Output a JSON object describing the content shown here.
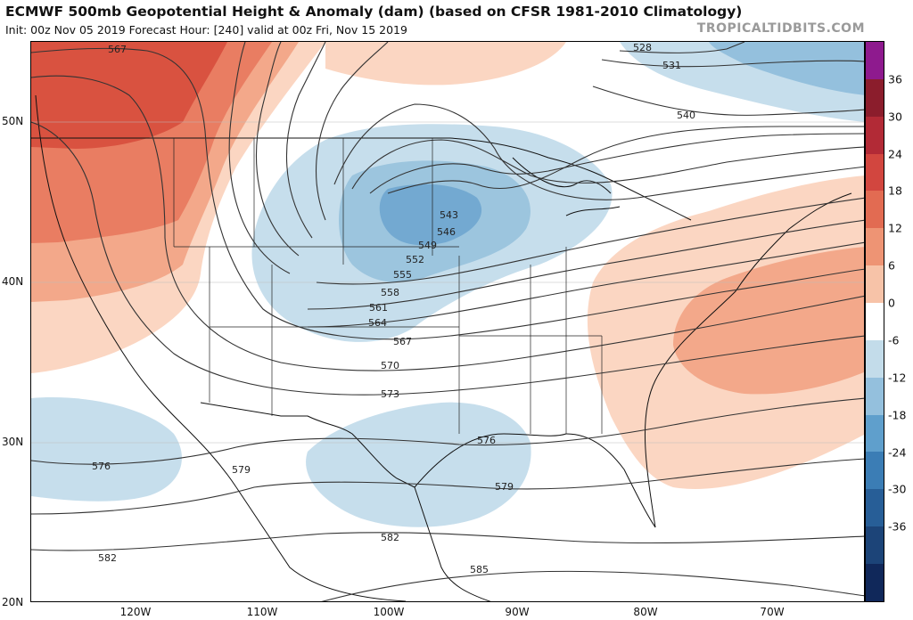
{
  "header": {
    "title": "ECMWF 500mb Geopotential Height & Anomaly (dam) (based on CFSR 1981-2010 Climatology)",
    "subtitle": "Init: 00z Nov 05 2019   Forecast Hour: [240]   valid at 00z Fri, Nov 15 2019",
    "brand": "TROPICALTIDBITS.COM"
  },
  "axes": {
    "lat_labels": [
      "50N",
      "40N",
      "30N",
      "20N"
    ],
    "lon_labels": [
      "120W",
      "110W",
      "100W",
      "90W",
      "80W",
      "70W"
    ]
  },
  "colorbar": {
    "labels": [
      "36",
      "30",
      "24",
      "18",
      "12",
      "6",
      "0",
      "-6",
      "-12",
      "-18",
      "-24",
      "-30",
      "-36"
    ],
    "colors": [
      "#8e1a8e",
      "#8b1d2c",
      "#b22a36",
      "#d2463f",
      "#e26b52",
      "#ee9474",
      "#f7c3a8",
      "#ffffff",
      "#c3dcea",
      "#94c0dd",
      "#5f9fcc",
      "#3b7db5",
      "#275e97",
      "#1c4478",
      "#10285a"
    ]
  },
  "contour_labels": {
    "c528": "528",
    "c531": "531",
    "c540": "540",
    "c543": "543",
    "c546": "546",
    "c549": "549",
    "c552": "552",
    "c555": "555",
    "c558": "558",
    "c561": "561",
    "c564": "564",
    "c567a": "567",
    "c567b": "567",
    "c570": "570",
    "c573": "573",
    "c576a": "576",
    "c576b": "576",
    "c579a": "579",
    "c579b": "579",
    "c582a": "582",
    "c582b": "582",
    "c585": "585"
  }
}
